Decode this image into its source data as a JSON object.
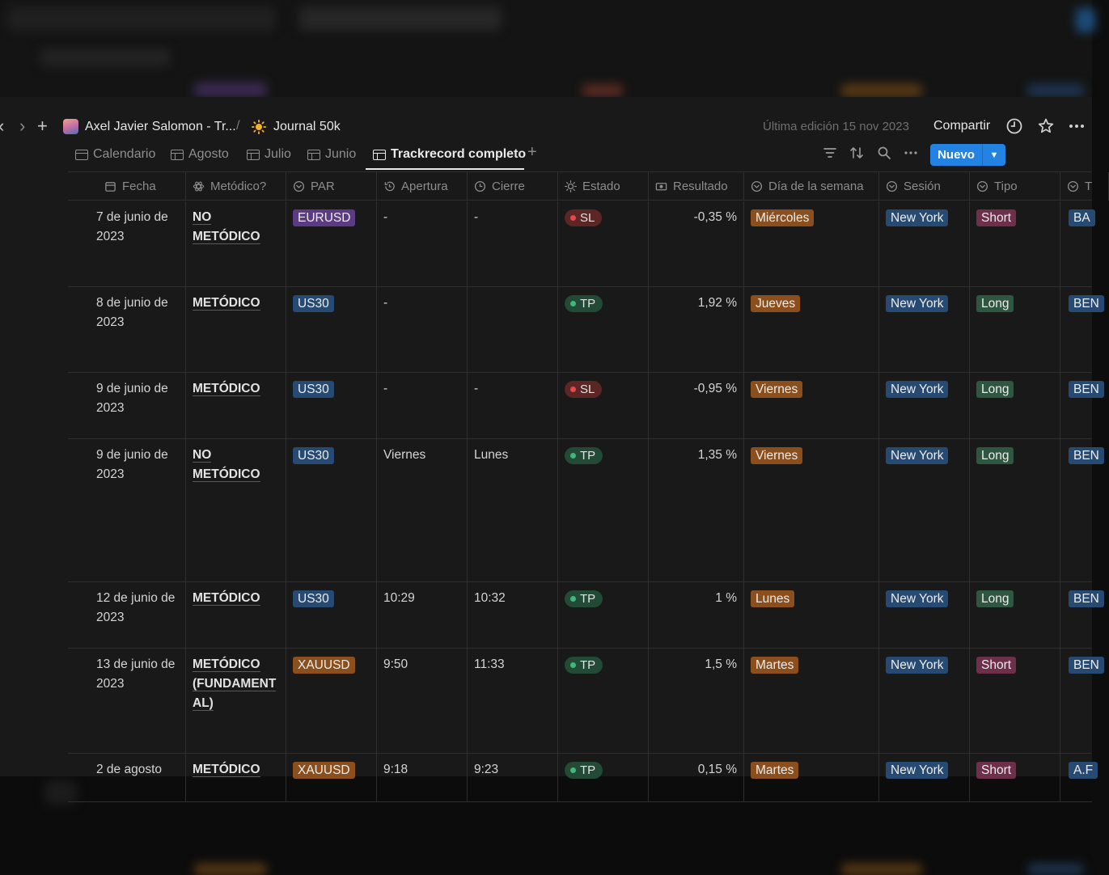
{
  "topbar": {
    "workspace": "Axel Javier Salomon - Tr...",
    "separator": "/",
    "page": "Journal 50k",
    "last_edit": "Última edición 15 nov 2023",
    "share": "Compartir"
  },
  "tabs": [
    {
      "label": "Calendario",
      "icon": "calendar-icon",
      "active": false
    },
    {
      "label": "Agosto",
      "icon": "table-icon",
      "active": false
    },
    {
      "label": "Julio",
      "icon": "table-icon",
      "active": false
    },
    {
      "label": "Junio",
      "icon": "table-icon",
      "active": false
    },
    {
      "label": "Trackrecord completo",
      "icon": "table-icon",
      "active": true
    }
  ],
  "new_button": "Nuevo",
  "columns": [
    {
      "label": "Fecha",
      "icon": "calendar-icon"
    },
    {
      "label": "Metódico?",
      "icon": "atom-icon"
    },
    {
      "label": "PAR",
      "icon": "select-icon"
    },
    {
      "label": "Apertura",
      "icon": "history-icon"
    },
    {
      "label": "Cierre",
      "icon": "clock-icon"
    },
    {
      "label": "Estado",
      "icon": "sun-icon"
    },
    {
      "label": "Resultado",
      "icon": "money-icon"
    },
    {
      "label": "Día de la semana",
      "icon": "select-icon"
    },
    {
      "label": "Sesión",
      "icon": "select-icon"
    },
    {
      "label": "Tipo",
      "icon": "select-icon"
    },
    {
      "label": "T",
      "icon": "select-icon"
    }
  ],
  "colors": {
    "eurusd": "#5b3b82",
    "us30": "#274a73",
    "xauusd": "#8a4f1d",
    "weekday": "#8a4f1d",
    "newyork": "#274a73",
    "short": "#6e2f4a",
    "long": "#2e5640",
    "sl_bg": "#5b2623",
    "sl_dot": "#e5484d",
    "tp_bg": "#224a36",
    "tp_dot": "#3fb87a"
  },
  "rows": [
    {
      "fecha": "7 de junio de 2023",
      "metodico": [
        "NO",
        "METÓDICO"
      ],
      "par": "EURUSD",
      "apertura": "-",
      "cierre": "-",
      "estado": "SL",
      "resultado": "-0,35 %",
      "dia": "Miércoles",
      "sesion": "New York",
      "tipo": "Short",
      "extra": "BA"
    },
    {
      "fecha": "8 de junio de 2023",
      "metodico": [
        "METÓDICO"
      ],
      "par": "US30",
      "apertura": "-",
      "cierre": "",
      "estado": "TP",
      "resultado": "1,92 %",
      "dia": "Jueves",
      "sesion": "New York",
      "tipo": "Long",
      "extra": "BEN"
    },
    {
      "fecha": "9 de junio de 2023",
      "metodico": [
        "METÓDICO"
      ],
      "par": "US30",
      "apertura": "-",
      "cierre": "-",
      "estado": "SL",
      "resultado": "-0,95 %",
      "dia": "Viernes",
      "sesion": "New York",
      "tipo": "Long",
      "extra": "BEN"
    },
    {
      "fecha": "9 de junio de 2023",
      "metodico": [
        "NO",
        "METÓDICO"
      ],
      "par": "US30",
      "apertura": "Viernes",
      "cierre": "Lunes",
      "estado": "TP",
      "resultado": "1,35 %",
      "dia": "Viernes",
      "sesion": "New York",
      "tipo": "Long",
      "extra": "BEN"
    },
    {
      "fecha": "12 de junio de 2023",
      "metodico": [
        "METÓDICO"
      ],
      "par": "US30",
      "apertura": "10:29",
      "cierre": "10:32",
      "estado": "TP",
      "resultado": "1 %",
      "dia": "Lunes",
      "sesion": "New York",
      "tipo": "Long",
      "extra": "BEN"
    },
    {
      "fecha": "13 de junio de 2023",
      "metodico": [
        "METÓDICO",
        "(FUNDAMENT",
        "AL)"
      ],
      "par": "XAUUSD",
      "apertura": "9:50",
      "cierre": "11:33",
      "estado": "TP",
      "resultado": "1,5 %",
      "dia": "Martes",
      "sesion": "New York",
      "tipo": "Short",
      "extra": "BEN"
    },
    {
      "fecha": "2 de agosto",
      "metodico": [
        "METÓDICO"
      ],
      "par": "XAUUSD",
      "apertura": "9:18",
      "cierre": "9:23",
      "estado": "TP",
      "resultado": "0,15 %",
      "dia": "Martes",
      "sesion": "New York",
      "tipo": "Short",
      "extra": "A.F"
    }
  ]
}
